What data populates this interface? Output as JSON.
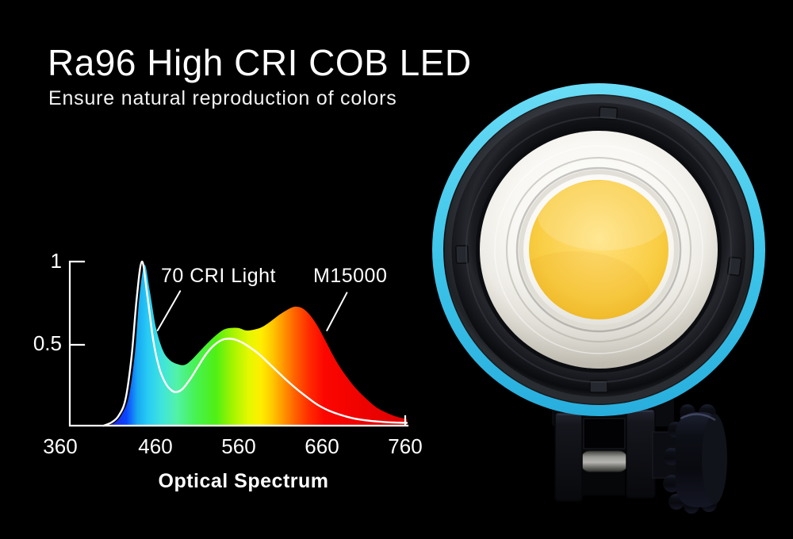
{
  "page": {
    "background": "#000000",
    "text_color": "#ffffff"
  },
  "header": {
    "title": "Ra96 High CRI COB LED",
    "subtitle": "Ensure natural reproduction of colors"
  },
  "chart_data": {
    "type": "area",
    "title": "Optical Spectrum",
    "xlabel": "Optical Spectrum",
    "ylabel": "",
    "xlim": [
      360,
      760
    ],
    "ylim": [
      0,
      1
    ],
    "grid": false,
    "legend_position": "none",
    "x_ticks": [
      360,
      460,
      560,
      660,
      760
    ],
    "x_tick_labels": [
      "360",
      "460",
      "560",
      "660",
      "760"
    ],
    "y_ticks": [
      1,
      0.5
    ],
    "y_tick_labels": [
      "1",
      "0.5"
    ],
    "series": [
      {
        "name": "M15000",
        "type": "area",
        "fill": "spectrum-gradient",
        "x": [
          415,
          424,
          432,
          440,
          447,
          452,
          458,
          464,
          471,
          479,
          487,
          496,
          504,
          512,
          521,
          530,
          540,
          549,
          557,
          566,
          575,
          584,
          593,
          603,
          613,
          622,
          631,
          640,
          649,
          658,
          668,
          678,
          689,
          700,
          712,
          724,
          736,
          748,
          760
        ],
        "y": [
          0,
          0.02,
          0.07,
          0.18,
          0.45,
          0.78,
          0.98,
          0.82,
          0.6,
          0.46,
          0.4,
          0.375,
          0.37,
          0.4,
          0.45,
          0.5,
          0.55,
          0.585,
          0.595,
          0.595,
          0.58,
          0.585,
          0.6,
          0.635,
          0.675,
          0.705,
          0.725,
          0.715,
          0.67,
          0.6,
          0.5,
          0.4,
          0.31,
          0.235,
          0.17,
          0.115,
          0.08,
          0.055,
          0.04
        ]
      },
      {
        "name": "70 CRI Light",
        "type": "line",
        "color": "#ffffff",
        "x": [
          411,
          420,
          428,
          436,
          443,
          449,
          455,
          461,
          468,
          475,
          482,
          489,
          495,
          502,
          510,
          519,
          528,
          537,
          546,
          554,
          562,
          571,
          580,
          590,
          600,
          611,
          622,
          634,
          646,
          658,
          671,
          684,
          698,
          712,
          727,
          742,
          760
        ],
        "y": [
          0,
          0.02,
          0.06,
          0.16,
          0.42,
          0.78,
          1.0,
          0.8,
          0.52,
          0.35,
          0.26,
          0.215,
          0.205,
          0.225,
          0.28,
          0.355,
          0.43,
          0.485,
          0.52,
          0.53,
          0.525,
          0.505,
          0.475,
          0.435,
          0.385,
          0.33,
          0.275,
          0.22,
          0.17,
          0.125,
          0.09,
          0.065,
          0.045,
          0.033,
          0.025,
          0.02,
          0.017
        ]
      }
    ],
    "annotations": [
      {
        "label": "70 CRI Light",
        "points_to": "white comparison curve",
        "leader": {
          "from": {
            "nm": 499,
            "value": 0.82
          },
          "to": {
            "nm": 473,
            "value": 0.58
          }
        }
      },
      {
        "label": "M15000",
        "points_to": "filled spectrum",
        "leader": {
          "from": {
            "nm": 691,
            "value": 0.81
          },
          "to": {
            "nm": 668,
            "value": 0.58
          }
        }
      }
    ],
    "spectrum_gradient": [
      {
        "nm": 415,
        "color": "#2a18d0"
      },
      {
        "nm": 437,
        "color": "#0b45ff"
      },
      {
        "nm": 450,
        "color": "#18a8f2"
      },
      {
        "nm": 462,
        "color": "#28ccf5"
      },
      {
        "nm": 478,
        "color": "#40e4dc"
      },
      {
        "nm": 495,
        "color": "#52f2a8"
      },
      {
        "nm": 515,
        "color": "#47f257"
      },
      {
        "nm": 540,
        "color": "#4ef014"
      },
      {
        "nm": 560,
        "color": "#a6f400"
      },
      {
        "nm": 578,
        "color": "#e4f800"
      },
      {
        "nm": 592,
        "color": "#ffee00"
      },
      {
        "nm": 605,
        "color": "#ffc800"
      },
      {
        "nm": 618,
        "color": "#ff9600"
      },
      {
        "nm": 632,
        "color": "#ff5e00"
      },
      {
        "nm": 648,
        "color": "#ff2a00"
      },
      {
        "nm": 665,
        "color": "#fc0600"
      },
      {
        "nm": 700,
        "color": "#f10300"
      },
      {
        "nm": 760,
        "color": "#df0000"
      }
    ]
  },
  "product": {
    "description": "COB LED light head with locking knob, front view",
    "colors": {
      "ring_cyan_light": "#6adcf6",
      "ring_cyan": "#3fc6ea",
      "ring_cyan_deep": "#28aedd",
      "bezel_black": "#1a1b20",
      "diffuser_white": "#f0eee8",
      "led_yellow_light": "#ffe27d",
      "led_yellow": "#f9cd43",
      "led_yellow_deep": "#eab526",
      "knob_black": "#0d0f16"
    }
  }
}
